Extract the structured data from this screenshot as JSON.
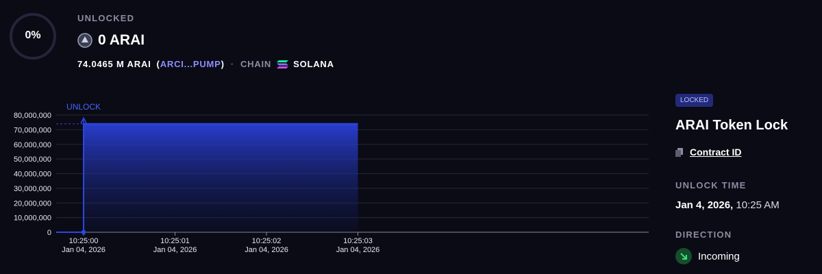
{
  "header": {
    "percent": "0%",
    "status": "UNLOCKED",
    "amount": "0 ARAI",
    "total": "74.0465 M ARAI",
    "open_paren": "(",
    "address": "ARCI...PUMP",
    "close_paren": ")",
    "separator": "·",
    "chain_label": "CHAIN",
    "chain": "SOLANA"
  },
  "sidebar": {
    "badge": "LOCKED",
    "title": "ARAI Token Lock",
    "contract": "Contract ID",
    "unlock_label": "UNLOCK TIME",
    "unlock_date": "Jan 4, 2026,",
    "unlock_time": "10:25 AM",
    "direction_label": "DIRECTION",
    "direction": "Incoming"
  },
  "chart_data": {
    "type": "area",
    "annotation": "UNLOCK",
    "series": [
      {
        "name": "ARAI",
        "color": "#2f46e6",
        "x": [
          "2026-01-04T10:25:00.000",
          "2026-01-04T10:25:00.000",
          "2026-01-04T10:25:03.000"
        ],
        "values": [
          0,
          74046500,
          74046500
        ]
      }
    ],
    "xlim": [
      "2026-01-04T10:24:59.700",
      "2026-01-04T10:25:06.180"
    ],
    "xticks": [
      {
        "value": "2026-01-04T10:25:00.000",
        "label": [
          "10:25:00",
          "Jan 04, 2026"
        ]
      },
      {
        "value": "2026-01-04T10:25:01.000",
        "label": [
          "10:25:01",
          "Jan 04, 2026"
        ]
      },
      {
        "value": "2026-01-04T10:25:02.000",
        "label": [
          "10:25:02",
          "Jan 04, 2026"
        ]
      },
      {
        "value": "2026-01-04T10:25:03.000",
        "label": [
          "10:25:03",
          "Jan 04, 2026"
        ]
      }
    ],
    "ylim": [
      0,
      80000000
    ],
    "yticks": [
      0,
      {
        "value": 10000000,
        "label": "10,000,000"
      },
      {
        "value": 20000000,
        "label": "20,000,000"
      },
      {
        "value": 30000000,
        "label": "30,000,000"
      },
      {
        "value": 40000000,
        "label": "40,000,000"
      },
      {
        "value": 50000000,
        "label": "50,000,000"
      },
      {
        "value": 60000000,
        "label": "60,000,000"
      },
      {
        "value": 70000000,
        "label": "70,000,000"
      },
      {
        "value": 80000000,
        "label": "80,000,000"
      }
    ],
    "grid": true
  }
}
